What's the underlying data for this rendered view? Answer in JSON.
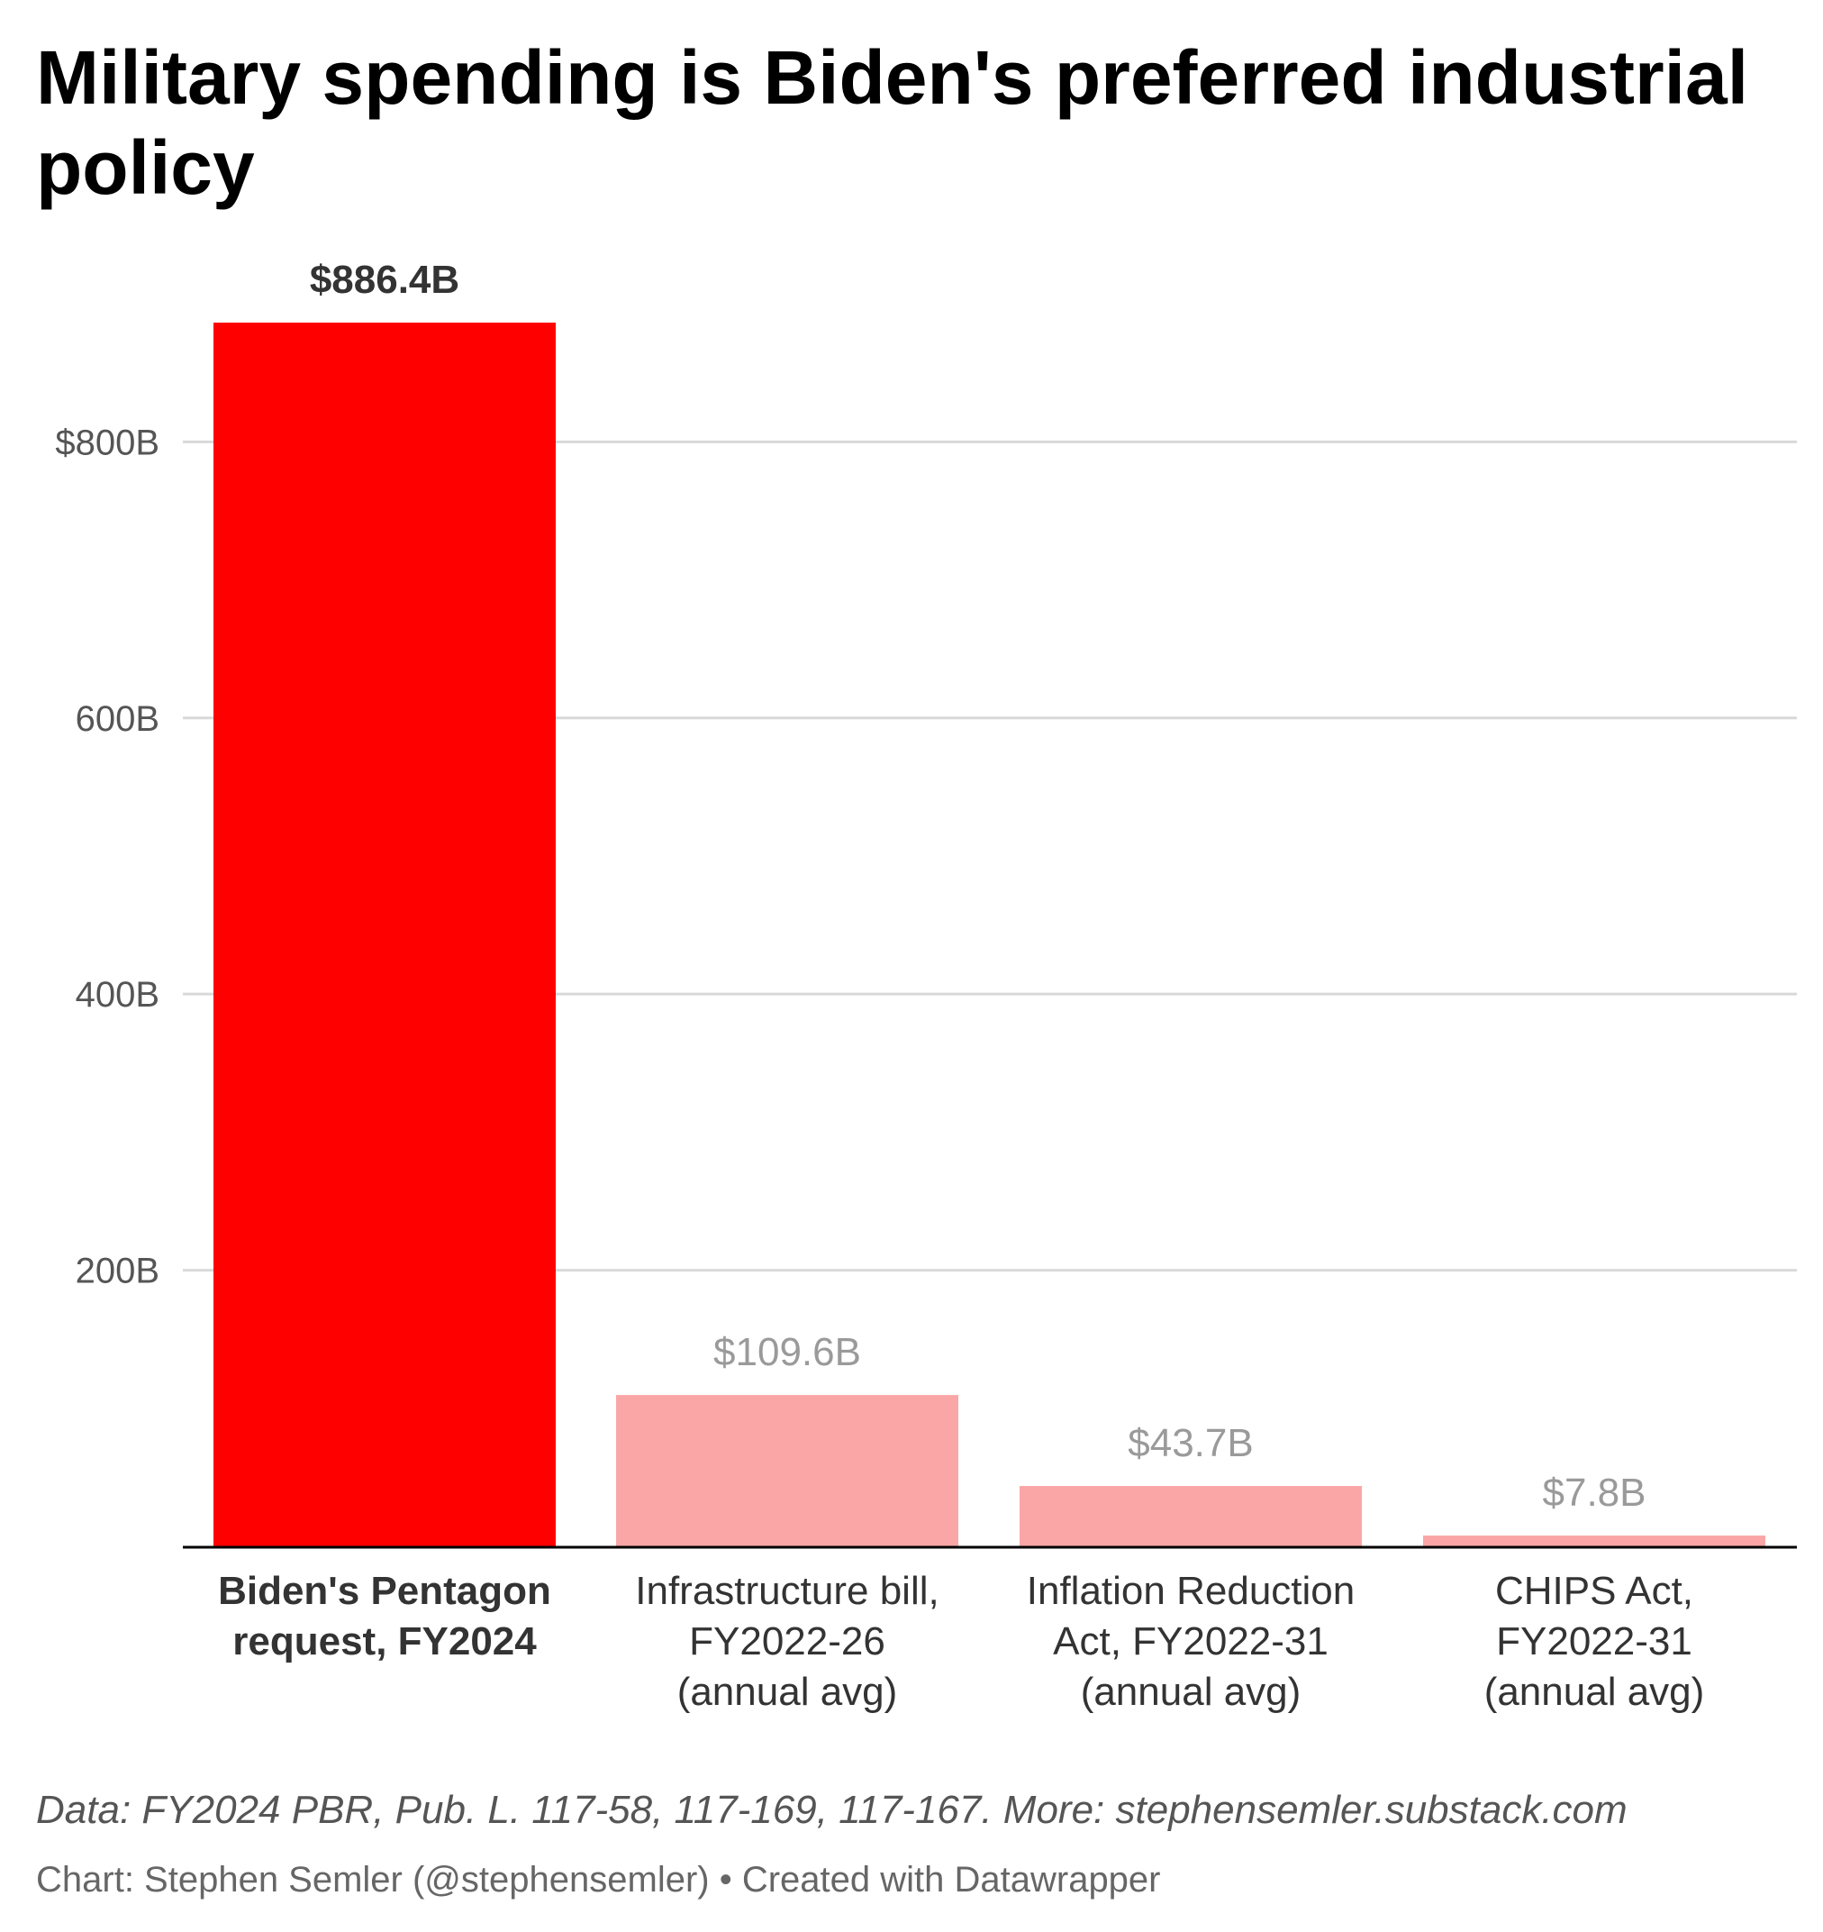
{
  "title": "Military spending is Biden's preferred industrial policy",
  "notes": "Data: FY2024 PBR, Pub. L. 117-58, 117-169, 117-167. More: stephensemler.substack.com",
  "byline": "Chart: Stephen Semler (@stephensemler) • Created with Datawrapper",
  "colors": {
    "highlight": "#ff0000",
    "muted": "#fba6a6",
    "grid": "#d9d9d9",
    "baseline": "#000000"
  },
  "chart_data": {
    "type": "bar",
    "title": "Military spending is Biden's preferred industrial policy",
    "xlabel": "",
    "ylabel": "",
    "ylim": [
      0,
      886.4
    ],
    "yticks": [
      {
        "value": 200,
        "label": "200B"
      },
      {
        "value": 400,
        "label": "400B"
      },
      {
        "value": 600,
        "label": "600B"
      },
      {
        "value": 800,
        "label": "$800B"
      }
    ],
    "categories": [
      [
        "Biden's Pentagon",
        "request, FY2024"
      ],
      [
        "Infrastructure bill,",
        "FY2022-26",
        "(annual avg)"
      ],
      [
        "Inflation Reduction",
        "Act, FY2022-31",
        "(annual avg)"
      ],
      [
        "CHIPS Act,",
        "FY2022-31",
        "(annual avg)"
      ]
    ],
    "values": [
      886.4,
      109.6,
      43.7,
      7.8
    ],
    "value_labels": [
      "$886.4B",
      "$109.6B",
      "$43.7B",
      "$7.8B"
    ],
    "highlight": [
      true,
      false,
      false,
      false
    ],
    "grid": true
  }
}
